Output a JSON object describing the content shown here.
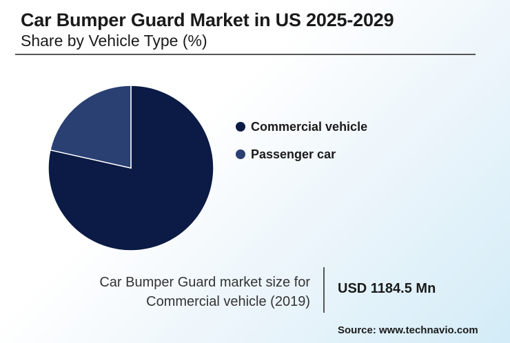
{
  "header": {
    "title": "Car Bumper Guard Market in US 2025-2029",
    "subtitle": "Share by Vehicle Type (%)"
  },
  "chart_data": {
    "type": "pie",
    "title": "Car Bumper Guard Market in US 2025-2029",
    "subtitle": "Share by Vehicle Type (%)",
    "categories": [
      "Commercial vehicle",
      "Passenger car"
    ],
    "values": [
      78.5,
      21.5
    ],
    "colors": [
      "#0b1b45",
      "#2a3f72"
    ],
    "legend_position": "right"
  },
  "legend": {
    "items": [
      {
        "label": "Commercial vehicle",
        "color": "#0b1b45"
      },
      {
        "label": "Passenger car",
        "color": "#2a3f72"
      }
    ]
  },
  "stat": {
    "label_line1": "Car Bumper Guard market size for",
    "label_line2": "Commercial vehicle (2019)",
    "value": "USD 1184.5 Mn"
  },
  "footer": {
    "source": "Source: www.technavio.com"
  }
}
